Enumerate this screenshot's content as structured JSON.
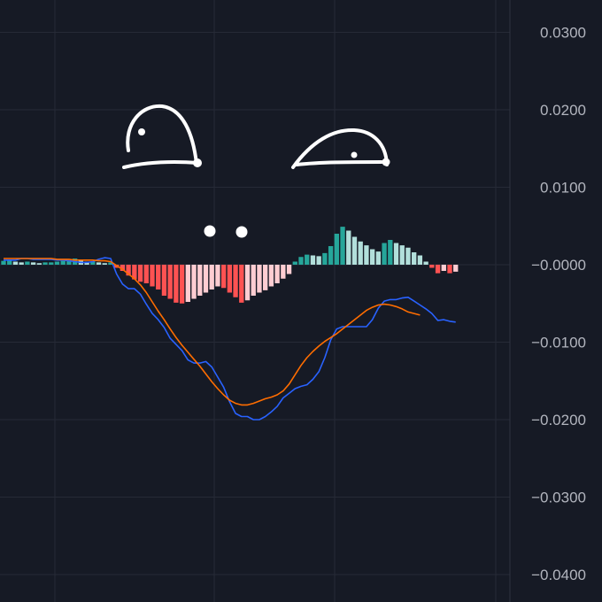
{
  "chart_data": {
    "type": "bar",
    "title": "",
    "xlabel": "",
    "ylabel": "",
    "ylim": [
      -0.042,
      0.033
    ],
    "grid": true,
    "y_ticks": [
      "0.0300",
      "0.0200",
      "0.0100",
      "−0.0000",
      "−0.0100",
      "−0.0200",
      "−0.0300",
      "−0.0400"
    ],
    "y_tick_values": [
      0.03,
      0.02,
      0.01,
      0.0,
      -0.01,
      -0.02,
      -0.03,
      -0.04
    ],
    "histogram": {
      "x_start": 0,
      "x_step": 1,
      "values": [
        0.0005,
        0.0006,
        0.0004,
        0.0003,
        0.0004,
        0.0003,
        0.0002,
        0.0003,
        0.0003,
        0.0004,
        0.0005,
        0.0006,
        0.0008,
        0.0006,
        0.0004,
        0.0004,
        0.0003,
        0.0002,
        0.0003,
        -0.0004,
        -0.0008,
        -0.0014,
        -0.0019,
        -0.0022,
        -0.0024,
        -0.0028,
        -0.0032,
        -0.004,
        -0.0044,
        -0.0049,
        -0.005,
        -0.0048,
        -0.0044,
        -0.004,
        -0.0036,
        -0.0032,
        -0.0028,
        -0.003,
        -0.0036,
        -0.0042,
        -0.0049,
        -0.0046,
        -0.004,
        -0.0036,
        -0.0033,
        -0.0028,
        -0.0024,
        -0.0018,
        -0.0012,
        0.0004,
        0.001,
        0.0013,
        0.0012,
        0.0011,
        0.0015,
        0.0024,
        0.004,
        0.0049,
        0.0044,
        0.0036,
        0.003,
        0.0025,
        0.002,
        0.0017,
        0.0028,
        0.0032,
        0.0028,
        0.0025,
        0.0022,
        0.0016,
        0.0012,
        0.0004,
        -0.0004,
        -0.0011,
        -0.0008,
        -0.0011,
        -0.0009
      ]
    },
    "series": [
      {
        "x_start": 0,
        "x_step": 1,
        "values": [
          0.0006,
          0.0006,
          0.0006,
          0.0008,
          0.0008,
          0.0007,
          0.0007,
          0.0007,
          0.0007,
          0.0006,
          0.0006,
          0.0005,
          0.0004,
          0.0003,
          0.0003,
          0.0004,
          0.0007,
          0.0009,
          0.0008,
          -0.0012,
          -0.0025,
          -0.0031,
          -0.0031,
          -0.0038,
          -0.0051,
          -0.0063,
          -0.0071,
          -0.0081,
          -0.0095,
          -0.0103,
          -0.0111,
          -0.0123,
          -0.0127,
          -0.0127,
          -0.0125,
          -0.0132,
          -0.0145,
          -0.0158,
          -0.0177,
          -0.0192,
          -0.0196,
          -0.0196,
          -0.02,
          -0.02,
          -0.0196,
          -0.019,
          -0.0183,
          -0.0172,
          -0.0166,
          -0.016,
          -0.0157,
          -0.0155,
          -0.0148,
          -0.0138,
          -0.012,
          -0.0097,
          -0.0083,
          -0.008,
          -0.008,
          -0.008,
          -0.008,
          -0.008,
          -0.0071,
          -0.0056,
          -0.0047,
          -0.0045,
          -0.0045,
          -0.0043,
          -0.0042,
          -0.0047,
          -0.0052,
          -0.0057,
          -0.0063,
          -0.0072,
          -0.0071,
          -0.0073,
          -0.0074
        ]
      },
      {
        "x_start": 0,
        "x_step": 1,
        "values": [
          0.0008,
          0.0008,
          0.0008,
          0.0008,
          0.0008,
          0.0008,
          0.0008,
          0.0008,
          0.0008,
          0.0007,
          0.0007,
          0.0007,
          0.0006,
          0.0006,
          0.0006,
          0.0006,
          0.0005,
          0.0005,
          0.0004,
          -0.0001,
          -0.0006,
          -0.0012,
          -0.0018,
          -0.0026,
          -0.0036,
          -0.0048,
          -0.006,
          -0.0071,
          -0.0083,
          -0.0094,
          -0.0104,
          -0.0113,
          -0.0122,
          -0.0131,
          -0.0141,
          -0.0151,
          -0.016,
          -0.0168,
          -0.0175,
          -0.0179,
          -0.0181,
          -0.0181,
          -0.0179,
          -0.0176,
          -0.0173,
          -0.0171,
          -0.0168,
          -0.0163,
          -0.0154,
          -0.0142,
          -0.013,
          -0.012,
          -0.0112,
          -0.0105,
          -0.0099,
          -0.0094,
          -0.0089,
          -0.0083,
          -0.0077,
          -0.0071,
          -0.0065,
          -0.0059,
          -0.0055,
          -0.0052,
          -0.0051,
          -0.0052,
          -0.0054,
          -0.0057,
          -0.0061,
          -0.0063,
          -0.0065
        ]
      }
    ]
  },
  "colors": {
    "background": "#161a25",
    "grid": "#262a36",
    "tick_text": "#b2b5be",
    "macd_line": "#2962ff",
    "signal_line": "#ff6d00",
    "hist_pos_rising": "#26a69a",
    "hist_pos_falling": "#b2dfdb",
    "hist_neg_falling": "#ff5252",
    "hist_neg_rising": "#ffcdd2",
    "drawing": "#ffffff"
  },
  "drawing": {
    "description_icon": "hand-drawn-face-icon"
  }
}
